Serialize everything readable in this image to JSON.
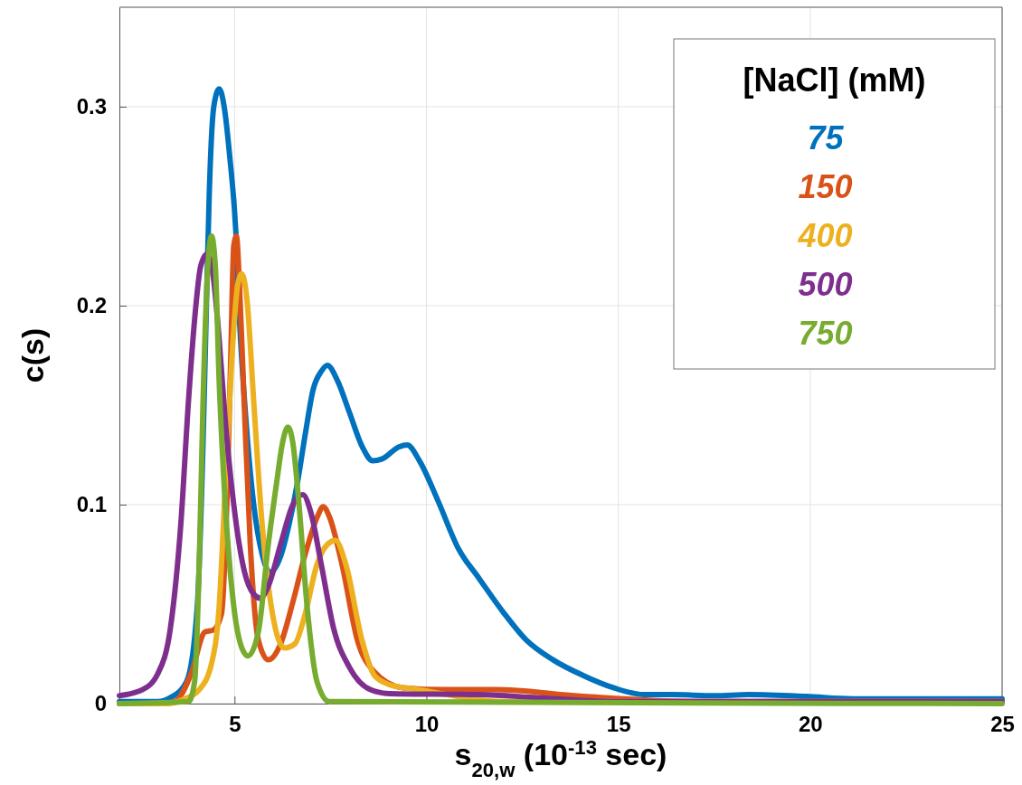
{
  "chart_data": {
    "type": "line",
    "xlabel": "s$_{20,w}$ (10$^{-13}$ sec)",
    "ylabel": "c(s)",
    "legend_title": "[NaCl] (mM)",
    "xlim": [
      2,
      25
    ],
    "ylim": [
      0,
      0.35
    ],
    "xticks": [
      5,
      10,
      15,
      20,
      25
    ],
    "yticks": [
      0,
      0.1,
      0.2,
      0.3
    ],
    "grid": true,
    "legend": "top right",
    "line_style": "solid",
    "marker": "none",
    "series": [
      {
        "name": "75",
        "color": "#0072bd",
        "x": [
          2,
          3,
          3.33,
          3.75,
          4.03,
          4.18,
          4.27,
          4.34,
          4.46,
          4.6,
          4.73,
          4.87,
          5.04,
          5.13,
          5.3,
          5.5,
          5.72,
          5.93,
          6.2,
          6.42,
          6.63,
          6.84,
          7.05,
          7.26,
          7.42,
          7.69,
          8.0,
          8.33,
          8.6,
          8.85,
          9.28,
          9.5,
          9.82,
          10.3,
          10.83,
          11.37,
          12.0,
          12.6,
          13.3,
          14.1,
          14.87,
          15.66,
          16.4,
          17.5,
          18.4,
          19.9,
          21.1,
          23,
          25
        ],
        "values": [
          0.001,
          0.001,
          0.003,
          0.011,
          0.049,
          0.131,
          0.202,
          0.255,
          0.3,
          0.309,
          0.3,
          0.276,
          0.235,
          0.193,
          0.142,
          0.1,
          0.075,
          0.066,
          0.074,
          0.09,
          0.11,
          0.135,
          0.158,
          0.167,
          0.17,
          0.162,
          0.146,
          0.129,
          0.122,
          0.123,
          0.129,
          0.13,
          0.122,
          0.102,
          0.078,
          0.063,
          0.046,
          0.032,
          0.022,
          0.014,
          0.008,
          0.0045,
          0.0045,
          0.004,
          0.0045,
          0.0036,
          0.0024,
          0.0024,
          0.0024
        ]
      },
      {
        "name": "150",
        "color": "#d95319",
        "x": [
          2,
          3,
          3.44,
          3.87,
          4.23,
          4.45,
          4.66,
          4.8,
          4.9,
          4.98,
          5.05,
          5.13,
          5.25,
          5.41,
          5.62,
          5.88,
          6.2,
          6.52,
          6.84,
          7.16,
          7.31,
          7.47,
          7.8,
          8.2,
          8.64,
          9.38,
          10.5,
          11.77,
          14.1,
          17,
          25
        ],
        "values": [
          0,
          0,
          0.001,
          0.015,
          0.036,
          0.037,
          0.045,
          0.1,
          0.173,
          0.23,
          0.235,
          0.21,
          0.152,
          0.08,
          0.032,
          0.022,
          0.03,
          0.051,
          0.075,
          0.094,
          0.099,
          0.094,
          0.07,
          0.032,
          0.016,
          0.008,
          0.007,
          0.007,
          0.0036,
          0.001,
          0.001
        ]
      },
      {
        "name": "400",
        "color": "#edb120",
        "x": [
          2,
          3.3,
          3.66,
          4.08,
          4.4,
          4.6,
          4.76,
          4.93,
          5.08,
          5.19,
          5.33,
          5.5,
          5.72,
          5.99,
          6.3,
          6.57,
          6.84,
          7.15,
          7.42,
          7.63,
          7.9,
          8.32,
          8.65,
          9.04,
          9.82,
          12,
          25
        ],
        "values": [
          0,
          0,
          0.002,
          0.007,
          0.02,
          0.049,
          0.11,
          0.173,
          0.21,
          0.216,
          0.202,
          0.152,
          0.09,
          0.045,
          0.028,
          0.03,
          0.045,
          0.07,
          0.08,
          0.082,
          0.07,
          0.032,
          0.014,
          0.0095,
          0.007,
          0.001,
          0.001
        ]
      },
      {
        "name": "500",
        "color": "#7e2f8e",
        "x": [
          2,
          2.6,
          3.0,
          3.33,
          3.6,
          3.8,
          3.96,
          4.12,
          4.29,
          4.45,
          4.6,
          4.76,
          4.98,
          5.25,
          5.5,
          5.67,
          5.88,
          6.2,
          6.52,
          6.78,
          6.99,
          7.26,
          7.58,
          8.0,
          8.54,
          9.04,
          11.4,
          12.9,
          15,
          25
        ],
        "values": [
          0.004,
          0.007,
          0.015,
          0.038,
          0.09,
          0.152,
          0.193,
          0.22,
          0.226,
          0.214,
          0.183,
          0.142,
          0.1,
          0.067,
          0.055,
          0.053,
          0.059,
          0.08,
          0.1,
          0.105,
          0.096,
          0.07,
          0.038,
          0.018,
          0.007,
          0.005,
          0.0045,
          0.003,
          0.001,
          0.001
        ]
      },
      {
        "name": "750",
        "color": "#77ac30",
        "x": [
          2,
          3.8,
          3.96,
          4.08,
          4.18,
          4.29,
          4.4,
          4.5,
          4.6,
          4.76,
          4.98,
          5.19,
          5.35,
          5.62,
          5.88,
          6.09,
          6.25,
          6.39,
          6.52,
          6.68,
          6.89,
          7.15,
          7.47,
          25
        ],
        "values": [
          0,
          0.001,
          0.011,
          0.07,
          0.152,
          0.214,
          0.235,
          0.22,
          0.162,
          0.1,
          0.049,
          0.028,
          0.024,
          0.036,
          0.08,
          0.11,
          0.131,
          0.139,
          0.131,
          0.1,
          0.049,
          0.011,
          0.001,
          0
        ]
      }
    ]
  }
}
